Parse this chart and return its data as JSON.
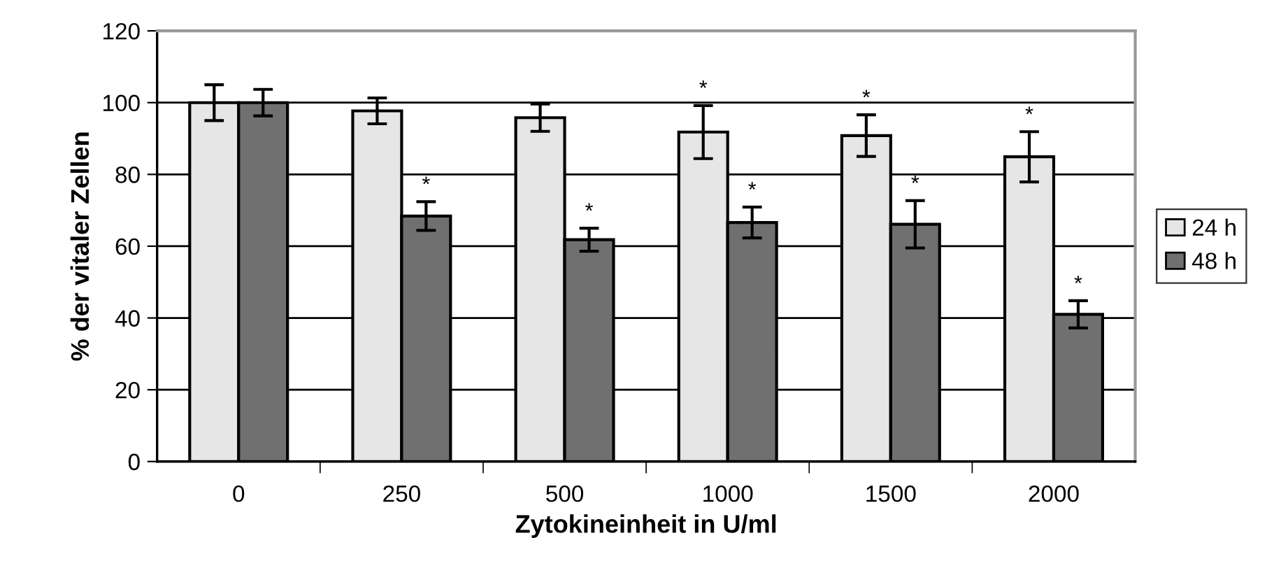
{
  "chart_data": {
    "type": "bar",
    "xlabel": "Zytokineinheit in U/ml",
    "ylabel": "% der vitaler Zellen",
    "categories": [
      "0",
      "250",
      "500",
      "1000",
      "1500",
      "2000"
    ],
    "series": [
      {
        "name": "24 h",
        "color": "#e6e6e6",
        "values": [
          100,
          97.7,
          95.8,
          91.8,
          90.8,
          84.9
        ],
        "errors": [
          5,
          3.6,
          3.8,
          7.4,
          5.8,
          7
        ]
      },
      {
        "name": "48 h",
        "color": "#707070",
        "values": [
          100,
          68.4,
          61.8,
          66.6,
          66.1,
          41
        ],
        "errors": [
          3.7,
          4,
          3.2,
          4.3,
          6.6,
          3.8
        ]
      }
    ],
    "annotations": [
      {
        "text": "*",
        "x": "250",
        "y": 68.4
      },
      {
        "text": "*",
        "x": "500",
        "y": 61.8
      },
      {
        "text": "*",
        "x": "1000",
        "y": 91.8
      },
      {
        "text": "*",
        "x": "1000",
        "y": 66.6
      },
      {
        "text": "*",
        "x": "1500",
        "y": 90.8
      },
      {
        "text": "*",
        "x": "1500",
        "y": 66.1
      },
      {
        "text": "*",
        "x": "2000",
        "y": 84.9
      },
      {
        "text": "*",
        "x": "2000",
        "y": 41
      }
    ],
    "ylim": [
      0,
      120
    ],
    "yticks": [
      0,
      20,
      40,
      60,
      80,
      100,
      120
    ],
    "grid": "y",
    "legend": "right"
  }
}
